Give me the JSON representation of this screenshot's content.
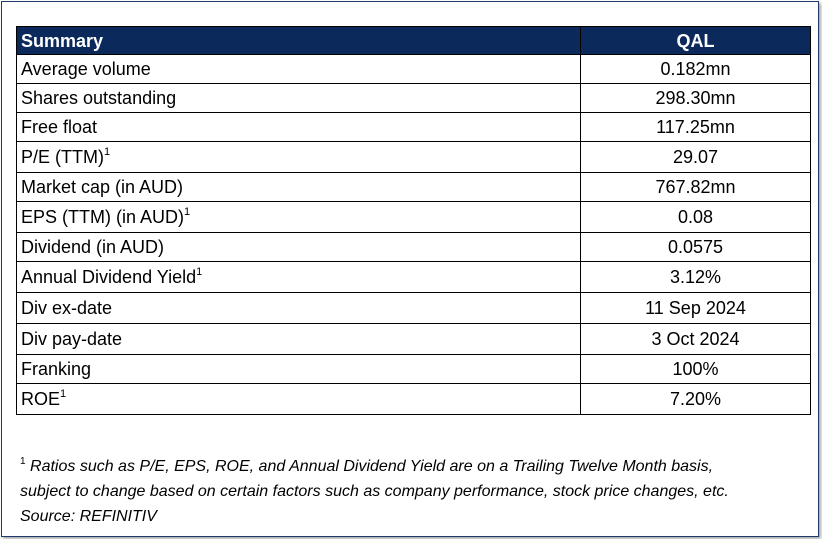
{
  "table": {
    "header": {
      "label": "Summary",
      "value": "QAL"
    },
    "rows": [
      {
        "label": "Average volume",
        "value": "0.182mn",
        "sup": ""
      },
      {
        "label": "Shares outstanding",
        "value": "298.30mn",
        "sup": ""
      },
      {
        "label": "Free float",
        "value": "117.25mn",
        "sup": ""
      },
      {
        "label": "P/E (TTM)",
        "value": "29.07",
        "sup": "1"
      },
      {
        "label": "Market cap (in AUD)",
        "value": "767.82mn",
        "sup": ""
      },
      {
        "label": "EPS (TTM) (in AUD)",
        "value": "0.08",
        "sup": "1"
      },
      {
        "label": "Dividend (in AUD)",
        "value": "0.0575",
        "sup": ""
      },
      {
        "label": "Annual Dividend Yield",
        "value": "3.12%",
        "sup": "1"
      },
      {
        "label": "Div ex-date",
        "value": "11 Sep 2024",
        "sup": ""
      },
      {
        "label": "Div pay-date",
        "value": "3 Oct 2024",
        "sup": ""
      },
      {
        "label": "Franking",
        "value": "100%",
        "sup": ""
      },
      {
        "label": "ROE",
        "value": "7.20%",
        "sup": "1"
      }
    ]
  },
  "footnote": {
    "marker": "1",
    "line1": "Ratios such as P/E, EPS, ROE, and Annual Dividend Yield are on a Trailing Twelve Month basis,",
    "line2": "subject to change based on certain factors such as company performance, stock price changes, etc.",
    "source": "Source: REFINITIV"
  },
  "colors": {
    "header_bg": "#0b2a5b",
    "header_text": "#ffffff",
    "border": "#000000"
  }
}
